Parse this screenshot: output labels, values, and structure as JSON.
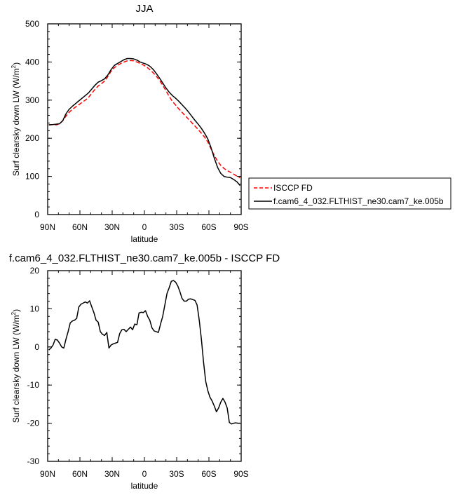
{
  "chart_data": [
    {
      "type": "line",
      "title": "JJA",
      "xlabel": "latitude",
      "ylabel": "Surf clearsky down LW (W/m",
      "ylabel_sup": "2",
      "ylabel_close": ")",
      "xlim": [
        90,
        -90
      ],
      "ylim": [
        0,
        500
      ],
      "xticks": [
        90,
        60,
        30,
        0,
        -30,
        -60,
        -90
      ],
      "xtick_labels": [
        "90N",
        "60N",
        "30N",
        "0",
        "30S",
        "60S",
        "90S"
      ],
      "yticks": [
        0,
        100,
        200,
        300,
        400,
        500
      ],
      "ytick_labels": [
        "0",
        "100",
        "200",
        "300",
        "400",
        "500"
      ],
      "legend_position": "right",
      "series": [
        {
          "name": "ISCCP FD",
          "color": "#ff0000",
          "dash": "dashed",
          "x": [
            89,
            85,
            82,
            79,
            76,
            73,
            70,
            67,
            64,
            61,
            58,
            55,
            52,
            49,
            46,
            43,
            40,
            37,
            34,
            31,
            28,
            25,
            22,
            19,
            16,
            13,
            10,
            7,
            4,
            1,
            -2,
            -5,
            -8,
            -11,
            -14,
            -17,
            -20,
            -23,
            -26,
            -29,
            -32,
            -35,
            -38,
            -41,
            -44,
            -47,
            -50,
            -53,
            -56,
            -59,
            -62,
            -65,
            -68,
            -71,
            -74,
            -77,
            -80,
            -83,
            -86,
            -89
          ],
          "y": [
            235,
            236,
            235,
            238,
            246,
            258,
            268,
            276,
            282,
            288,
            294,
            300,
            307,
            318,
            328,
            337,
            343,
            350,
            362,
            376,
            385,
            391,
            396,
            400,
            403,
            404,
            403,
            400,
            396,
            392,
            387,
            380,
            372,
            363,
            352,
            339,
            325,
            310,
            297,
            287,
            277,
            268,
            259,
            250,
            241,
            232,
            223,
            213,
            203,
            190,
            172,
            155,
            140,
            129,
            121,
            115,
            111,
            106,
            101,
            96
          ]
        },
        {
          "name": "f.cam6_4_032.FLTHIST_ne30.cam7_ke.005b",
          "color": "#000000",
          "dash": "solid",
          "x": [
            89,
            85,
            82,
            79,
            76,
            73,
            70,
            67,
            64,
            61,
            58,
            55,
            52,
            49,
            46,
            43,
            40,
            37,
            34,
            31,
            28,
            25,
            22,
            19,
            16,
            13,
            10,
            7,
            4,
            1,
            -2,
            -5,
            -8,
            -11,
            -14,
            -17,
            -20,
            -23,
            -26,
            -29,
            -32,
            -35,
            -38,
            -41,
            -44,
            -47,
            -50,
            -53,
            -56,
            -59,
            -62,
            -65,
            -68,
            -71,
            -74,
            -77,
            -80,
            -83,
            -86,
            -89
          ],
          "y": [
            235,
            236,
            237,
            238,
            246,
            264,
            276,
            284,
            291,
            298,
            305,
            312,
            319,
            329,
            339,
            347,
            351,
            356,
            366,
            380,
            391,
            396,
            401,
            406,
            409,
            409,
            408,
            405,
            400,
            397,
            394,
            389,
            381,
            370,
            358,
            345,
            332,
            321,
            312,
            305,
            297,
            288,
            279,
            269,
            258,
            247,
            237,
            226,
            213,
            198,
            175,
            148,
            124,
            108,
            100,
            98,
            97,
            92,
            86,
            76
          ]
        }
      ]
    },
    {
      "type": "line",
      "title": "f.cam6_4_032.FLTHIST_ne30.cam7_ke.005b - ISCCP FD",
      "xlabel": "latitude",
      "ylabel": "Surf clearsky down LW (W/m",
      "ylabel_sup": "2",
      "ylabel_close": ")",
      "xlim": [
        90,
        -90
      ],
      "ylim": [
        -30,
        20
      ],
      "xticks": [
        90,
        60,
        30,
        0,
        -30,
        -60,
        -90
      ],
      "xtick_labels": [
        "90N",
        "60N",
        "30N",
        "0",
        "30S",
        "60S",
        "90S"
      ],
      "yticks": [
        -30,
        -20,
        -10,
        0,
        10,
        20
      ],
      "ytick_labels": [
        "-30",
        "-20",
        "-10",
        "0",
        "10",
        "20"
      ],
      "series": [
        {
          "color": "#000000",
          "dash": "solid",
          "x": [
            89,
            87,
            85,
            83,
            81,
            79,
            77,
            75,
            73,
            71,
            69,
            67,
            65,
            63,
            61,
            59,
            57,
            55,
            53,
            51,
            49,
            47,
            45,
            43,
            41,
            39,
            37,
            35,
            33,
            31,
            29,
            27,
            25,
            23,
            21,
            19,
            17,
            15,
            13,
            11,
            9,
            7,
            5,
            3,
            1,
            -1,
            -3,
            -5,
            -7,
            -9,
            -11,
            -13,
            -15,
            -17,
            -19,
            -21,
            -23,
            -25,
            -27,
            -29,
            -31,
            -33,
            -35,
            -37,
            -39,
            -41,
            -43,
            -45,
            -47,
            -49,
            -51,
            -53,
            -55,
            -57,
            -59,
            -61,
            -63,
            -65,
            -67,
            -69,
            -71,
            -73,
            -75,
            -77,
            -79,
            -81,
            -83,
            -85,
            -87,
            -89
          ],
          "y": [
            -0.8,
            -0.3,
            0.5,
            2.0,
            1.8,
            1.0,
            0.0,
            -0.3,
            2.0,
            4.0,
            6.3,
            6.8,
            7.0,
            7.5,
            10.5,
            11.2,
            11.5,
            11.8,
            11.5,
            12.1,
            10.5,
            9.0,
            7.0,
            6.5,
            4.0,
            3.3,
            3.0,
            3.8,
            -0.3,
            0.5,
            0.8,
            1.0,
            1.2,
            3.5,
            4.5,
            4.6,
            4.0,
            4.6,
            5.2,
            4.5,
            6.0,
            5.8,
            8.9,
            9.1,
            9.0,
            9.5,
            8.0,
            7.0,
            5.0,
            4.2,
            4.0,
            3.8,
            6.0,
            8.0,
            11.0,
            14.0,
            15.5,
            17.2,
            17.4,
            17.0,
            16.0,
            14.5,
            12.7,
            12.0,
            12.0,
            12.5,
            12.6,
            12.4,
            12.2,
            11.0,
            7.0,
            2.0,
            -4.0,
            -9.0,
            -11.5,
            -13.2,
            -14.2,
            -15.5,
            -17.0,
            -16.0,
            -14.5,
            -13.5,
            -14.5,
            -16.0,
            -19.8,
            -20.2,
            -20.0,
            -19.9,
            -20.0,
            -20.0
          ]
        }
      ]
    }
  ]
}
